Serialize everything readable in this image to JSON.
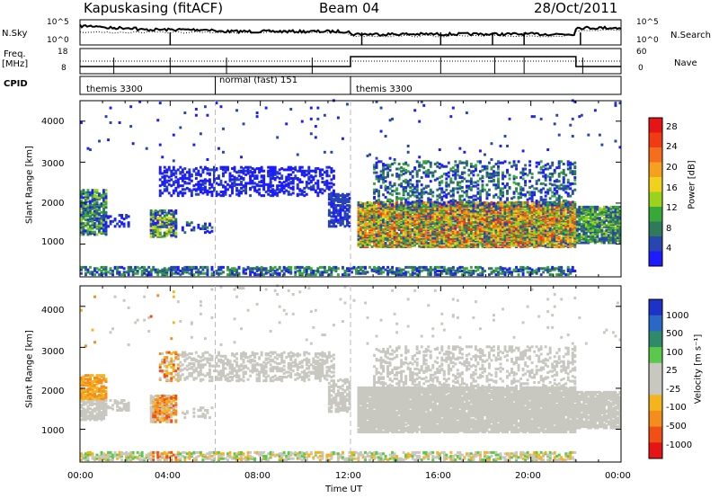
{
  "header": {
    "station": "Kapuskasing (fitACF)",
    "beam": "Beam 04",
    "date": "28/Oct/2011"
  },
  "top_panels": {
    "nsky_label": "N.Sky",
    "nsearch_label": "N.Search",
    "freq_label_1": "Freq.",
    "freq_label_2": "[MHz]",
    "nave_label": "Nave",
    "cpid_label": "CPID",
    "nsky_ticks": [
      "10^5",
      "10^0"
    ],
    "nsearch_ticks": [
      "10^5",
      "10^0"
    ],
    "freq_ticks": [
      "18",
      "8"
    ],
    "nave_ticks": [
      "60",
      "0"
    ],
    "cpid_segments": [
      {
        "label": "themis 3300",
        "start": 0,
        "end": 6
      },
      {
        "label": "normal (fast) 151",
        "start": 6,
        "end": 12
      },
      {
        "label": "themis 3300",
        "start": 12,
        "end": 24
      }
    ]
  },
  "chart_data": [
    {
      "type": "heatmap",
      "name": "power",
      "ylabel": "Slant Range [km]",
      "xlim": [
        0,
        24
      ],
      "ylim": [
        200,
        4500
      ],
      "yticks": [
        "1000",
        "2000",
        "3000",
        "4000"
      ],
      "colorbar_label": "Power [dB]",
      "colorbar_ticks": [
        "4",
        "8",
        "12",
        "16",
        "20",
        "24",
        "28"
      ],
      "colorbar_colors": [
        "#1c1cff",
        "#2846b0",
        "#2f7a5a",
        "#38a838",
        "#9ad21e",
        "#f0d21e",
        "#f5a01e",
        "#f56e1e",
        "#f03c14",
        "#e61414"
      ]
    },
    {
      "type": "heatmap",
      "name": "velocity",
      "ylabel": "Slant Range [km]",
      "xlabel": "Time UT",
      "xlim": [
        0,
        24
      ],
      "ylim": [
        200,
        4500
      ],
      "yticks": [
        "1000",
        "2000",
        "3000",
        "4000"
      ],
      "xticks": [
        "00:00",
        "04:00",
        "08:00",
        "12:00",
        "16:00",
        "20:00",
        "00:00"
      ],
      "colorbar_label": "Velocity [m s⁻¹]",
      "colorbar_ticks": [
        "1000",
        "500",
        "100",
        "25",
        "-25",
        "-100",
        "-500",
        "-1000"
      ],
      "colorbar_colors": [
        "#1c32c8",
        "#2a68c8",
        "#2f8a6a",
        "#5ac84a",
        "#c8c8c0",
        "#c8c8c0",
        "#f5b41e",
        "#f58c1e",
        "#f05014",
        "#e61414"
      ]
    }
  ]
}
